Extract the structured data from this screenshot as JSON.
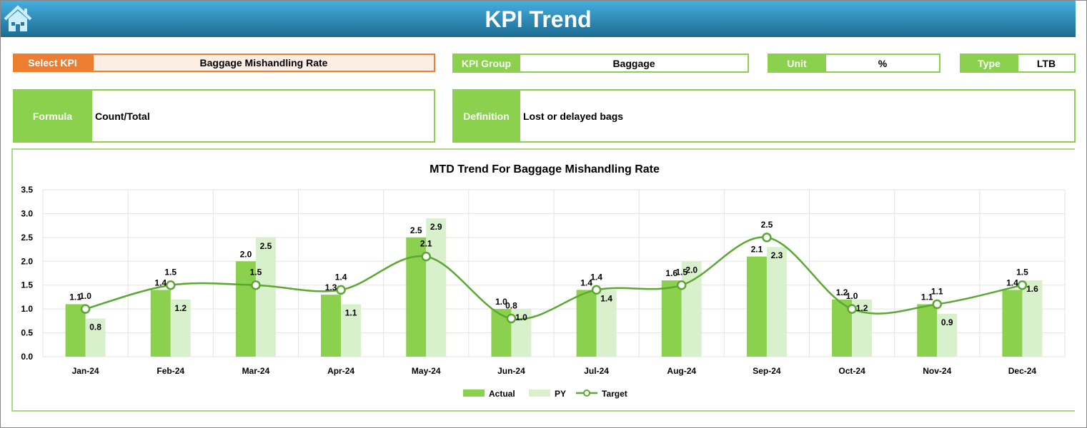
{
  "header": {
    "title": "KPI Trend",
    "home_icon": "home-icon"
  },
  "select_kpi": {
    "label": "Select KPI",
    "value": "Baggage Mishandling Rate"
  },
  "kpi_group": {
    "label": "KPI Group",
    "value": "Baggage"
  },
  "unit": {
    "label": "Unit",
    "value": "%"
  },
  "type": {
    "label": "Type",
    "value": "LTB"
  },
  "formula": {
    "label": "Formula",
    "value": "Count/Total"
  },
  "definition": {
    "label": "Definition",
    "value": "Lost or delayed bags"
  },
  "colors": {
    "actual": "#8cd14e",
    "py": "#d8f0cc",
    "target": "#5aa832",
    "accent": "#ed7d31"
  },
  "chart_data": {
    "type": "bar",
    "title": "MTD Trend For Baggage Mishandling Rate",
    "categories": [
      "Jan-24",
      "Feb-24",
      "Mar-24",
      "Apr-24",
      "May-24",
      "Jun-24",
      "Jul-24",
      "Aug-24",
      "Sep-24",
      "Oct-24",
      "Nov-24",
      "Dec-24"
    ],
    "ylim": [
      0,
      3.5
    ],
    "yticks": [
      "0.0",
      "0.5",
      "1.0",
      "1.5",
      "2.0",
      "2.5",
      "3.0",
      "3.5"
    ],
    "grid": true,
    "legend": "bottom",
    "series": [
      {
        "name": "Actual",
        "type": "bar",
        "values": [
          1.1,
          1.4,
          2.0,
          1.3,
          2.5,
          1.0,
          1.4,
          1.6,
          2.1,
          1.2,
          1.1,
          1.4
        ]
      },
      {
        "name": "PY",
        "type": "bar",
        "values": [
          0.8,
          1.2,
          2.5,
          1.1,
          2.9,
          1.0,
          1.4,
          2.0,
          2.3,
          1.2,
          0.9,
          1.6
        ]
      },
      {
        "name": "Target",
        "type": "line",
        "values": [
          1.0,
          1.5,
          1.5,
          1.4,
          2.1,
          0.8,
          1.4,
          1.5,
          2.5,
          1.0,
          1.1,
          1.5
        ]
      }
    ]
  }
}
